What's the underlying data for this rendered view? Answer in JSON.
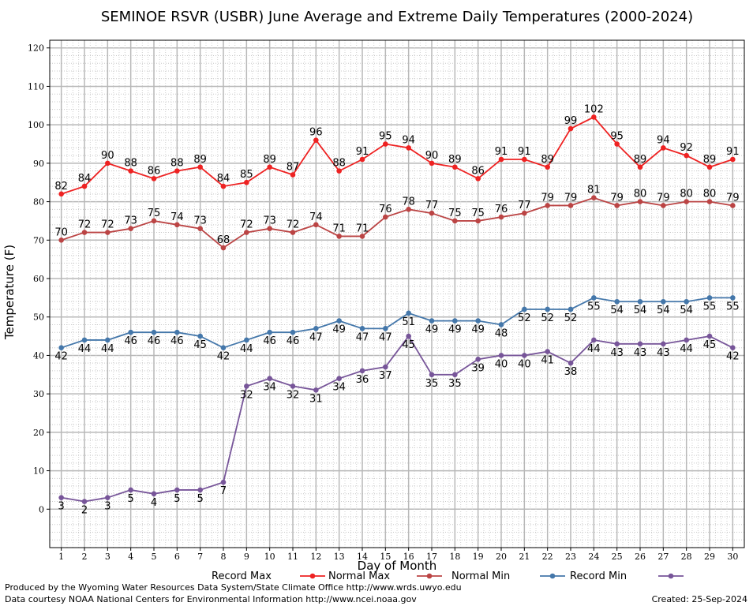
{
  "chart_data": {
    "type": "line",
    "title": "SEMINOE RSVR (USBR) June Average and Extreme Daily Temperatures (2000-2024)",
    "xlabel": "Day of Month",
    "ylabel": "Temperature (F)",
    "x": [
      1,
      2,
      3,
      4,
      5,
      6,
      7,
      8,
      9,
      10,
      11,
      12,
      13,
      14,
      15,
      16,
      17,
      18,
      19,
      20,
      21,
      22,
      23,
      24,
      25,
      26,
      27,
      28,
      29,
      30
    ],
    "xlim": [
      0.5,
      30.5
    ],
    "ylim": [
      -10,
      122
    ],
    "yticks": [
      0,
      10,
      20,
      30,
      40,
      50,
      60,
      70,
      80,
      90,
      100,
      110,
      120
    ],
    "grid": true,
    "legend_position": "bottom",
    "series": [
      {
        "name": "Record Max",
        "color": "#ee2222",
        "label_pos": "above",
        "values": [
          82,
          84,
          90,
          88,
          86,
          88,
          89,
          84,
          85,
          89,
          87,
          96,
          88,
          91,
          95,
          94,
          90,
          89,
          86,
          91,
          91,
          89,
          99,
          102,
          95,
          89,
          94,
          92,
          89,
          91
        ]
      },
      {
        "name": "Normal Max",
        "color": "#bb4444",
        "label_pos": "above",
        "values": [
          70,
          72,
          72,
          73,
          75,
          74,
          73,
          68,
          72,
          73,
          72,
          74,
          71,
          71,
          76,
          78,
          77,
          75,
          75,
          76,
          77,
          79,
          79,
          81,
          79,
          80,
          79,
          80,
          80,
          79
        ]
      },
      {
        "name": "Normal Min",
        "color": "#4477aa",
        "label_pos": "below",
        "values": [
          42,
          44,
          44,
          46,
          46,
          46,
          45,
          42,
          44,
          46,
          46,
          47,
          49,
          47,
          47,
          51,
          49,
          49,
          49,
          48,
          52,
          52,
          52,
          55,
          54,
          54,
          54,
          54,
          55,
          55
        ]
      },
      {
        "name": "Record Min",
        "color": "#775599",
        "label_pos": "below",
        "values": [
          3,
          2,
          3,
          5,
          4,
          5,
          5,
          7,
          32,
          34,
          32,
          31,
          34,
          36,
          37,
          45,
          35,
          35,
          39,
          40,
          40,
          41,
          38,
          44,
          43,
          43,
          43,
          44,
          45,
          42
        ]
      }
    ]
  },
  "footer": {
    "line1": "Produced by the Wyoming Water Resources Data System/State Climate Office http://www.wrds.uwyo.edu",
    "line2": "Data courtesy NOAA National Centers for Environmental Information http://www.ncei.noaa.gov",
    "created": "Created: 25-Sep-2024"
  }
}
